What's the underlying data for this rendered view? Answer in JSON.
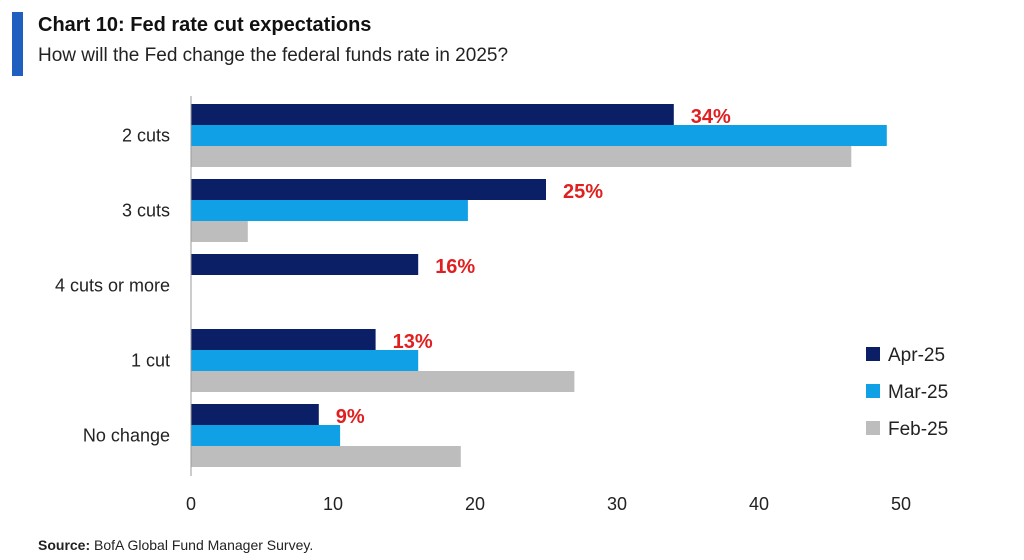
{
  "header": {
    "title": "Chart 10: Fed rate cut expectations",
    "subtitle": "How will the Fed change the federal funds rate in 2025?",
    "accent_color": "#1f5fbf"
  },
  "footer": {
    "source_label": "Source:",
    "source_text": "BofA Global Fund Manager Survey."
  },
  "chart_data": {
    "type": "bar",
    "orientation": "horizontal",
    "title": "Chart 10: Fed rate cut expectations",
    "subtitle": "How will the Fed change the federal funds rate in 2025?",
    "categories": [
      "2 cuts",
      "3 cuts",
      "4 cuts or more",
      "1 cut",
      "No change"
    ],
    "series": [
      {
        "name": "Apr-25",
        "color": "#0b1f66",
        "values": [
          34,
          25,
          16,
          13,
          9
        ]
      },
      {
        "name": "Mar-25",
        "color": "#0fa0e6",
        "values": [
          49,
          19.5,
          null,
          16,
          10.5
        ]
      },
      {
        "name": "Feb-25",
        "color": "#bdbdbd",
        "values": [
          46.5,
          4,
          null,
          27,
          19
        ]
      }
    ],
    "data_labels": [
      "34%",
      "25%",
      "16%",
      "13%",
      "9%"
    ],
    "data_label_color": "#e02020",
    "xlim": [
      0,
      50
    ],
    "xticks": [
      0,
      10,
      20,
      30,
      40,
      50
    ],
    "xlabel": "",
    "ylabel": "",
    "legend": {
      "position": "right",
      "entries": [
        "Apr-25",
        "Mar-25",
        "Feb-25"
      ]
    },
    "grid": false
  }
}
